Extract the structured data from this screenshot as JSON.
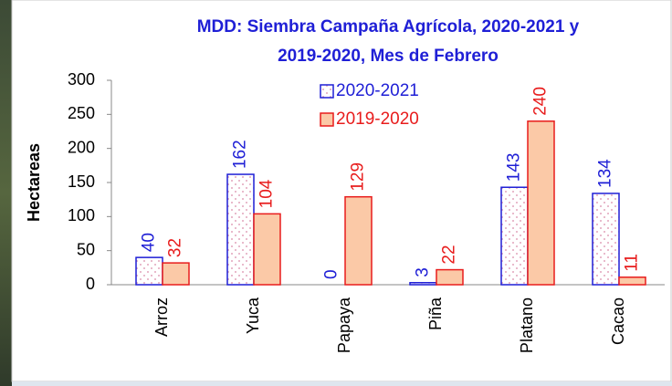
{
  "chart_data": {
    "type": "bar",
    "title": [
      "MDD: Siembra Campaña Agrícola, 2020-2021  y",
      "2019-2020, Mes de Febrero"
    ],
    "y_label": "Hectareas",
    "categories": [
      "Arroz",
      "Yuca",
      "Papaya",
      "Piña",
      "Platano",
      "Cacao"
    ],
    "series": [
      {
        "name": "2020-2021",
        "color": "#1f1fd6",
        "values": [
          40,
          162,
          0,
          3,
          143,
          134
        ]
      },
      {
        "name": "2019-2020",
        "color": "#e81c1c",
        "values": [
          32,
          104,
          129,
          22,
          240,
          11
        ]
      }
    ],
    "ylim": [
      0,
      300
    ],
    "yticks": [
      0,
      50,
      100,
      150,
      200,
      250,
      300
    ]
  }
}
